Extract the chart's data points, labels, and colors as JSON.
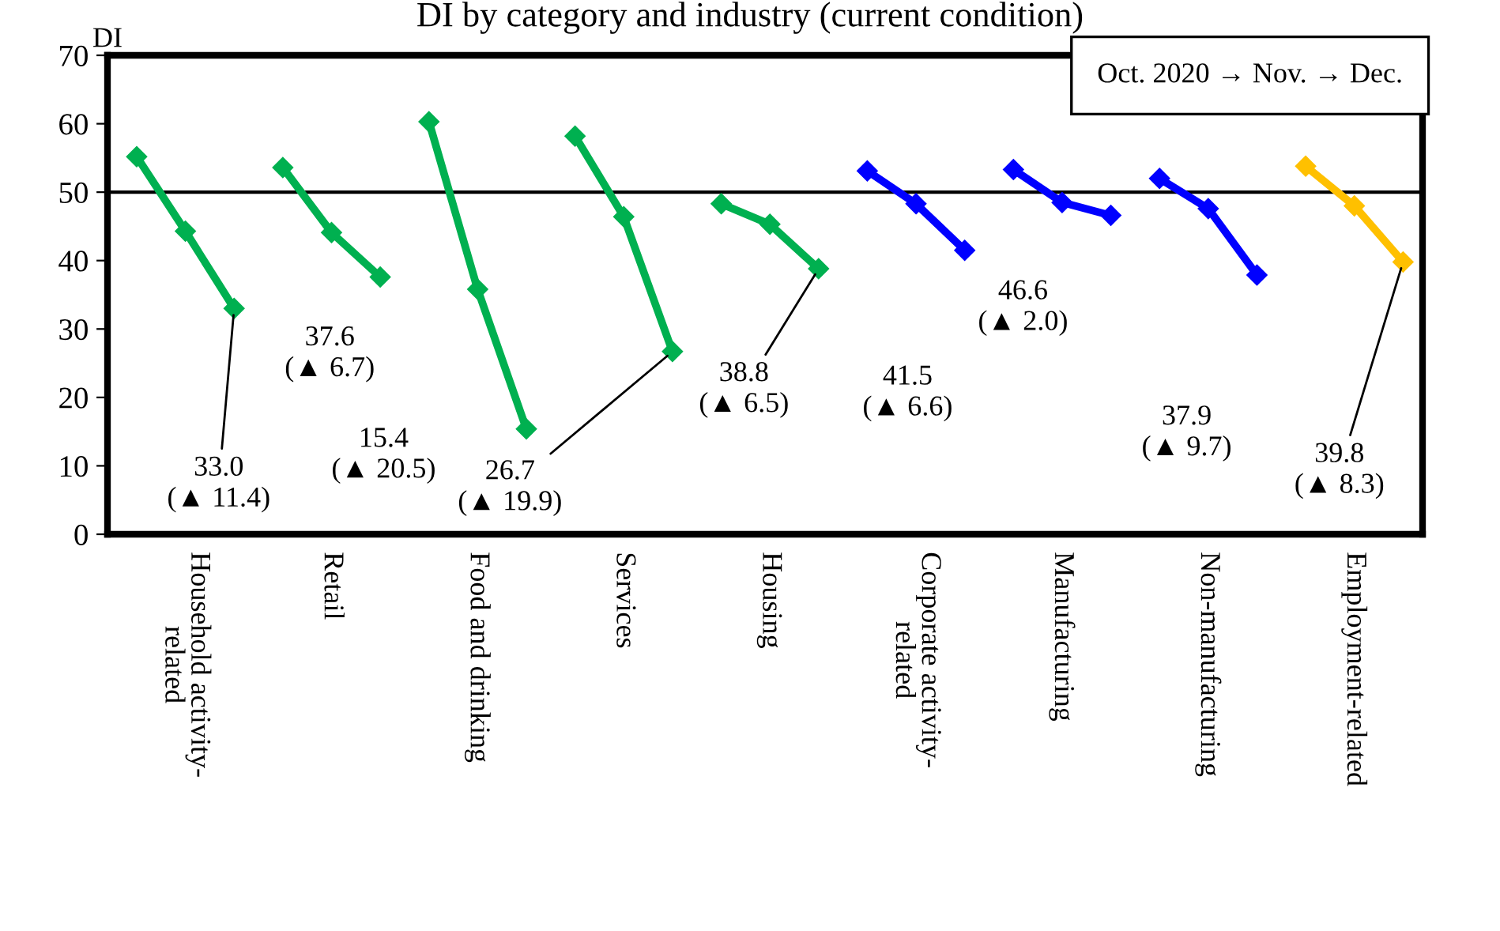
{
  "chart_data": {
    "type": "line",
    "title": "DI by category and industry (current condition)",
    "ylabel": "DI",
    "ylim": [
      0,
      70
    ],
    "yticks": [
      0,
      10,
      20,
      30,
      40,
      50,
      60,
      70
    ],
    "categories": [
      null,
      "Household activity-\nrelated",
      null,
      null,
      "Retail",
      null,
      null,
      "Food and drinking",
      null,
      null,
      "Services",
      null,
      null,
      "Housing",
      null,
      null,
      "Corporate activity-\nrelated",
      null,
      null,
      "Manufacturing",
      null,
      null,
      "Non-manufacturing",
      null,
      null,
      "Employment-related",
      null
    ],
    "marker": "diamond",
    "grid": false,
    "series": [
      {
        "color": "#00b050",
        "values": [
          55.2,
          44.3,
          33.0,
          null,
          null,
          null,
          null,
          null,
          null,
          null,
          null,
          null,
          null,
          null,
          null,
          null,
          null,
          null,
          null,
          null,
          null,
          null,
          null,
          null,
          null,
          null,
          null
        ]
      },
      {
        "color": "#00b050",
        "values": [
          null,
          null,
          null,
          53.6,
          44.1,
          37.6,
          null,
          null,
          null,
          null,
          null,
          null,
          null,
          null,
          null,
          null,
          null,
          null,
          null,
          null,
          null,
          null,
          null,
          null,
          null,
          null,
          null
        ]
      },
      {
        "color": "#00b050",
        "values": [
          null,
          null,
          null,
          null,
          null,
          null,
          60.3,
          35.8,
          15.4,
          null,
          null,
          null,
          null,
          null,
          null,
          null,
          null,
          null,
          null,
          null,
          null,
          null,
          null,
          null,
          null,
          null,
          null
        ]
      },
      {
        "color": "#00b050",
        "values": [
          null,
          null,
          null,
          null,
          null,
          null,
          null,
          null,
          null,
          58.2,
          46.4,
          26.7,
          null,
          null,
          null,
          null,
          null,
          null,
          null,
          null,
          null,
          null,
          null,
          null,
          null,
          null,
          null
        ]
      },
      {
        "color": "#00b050",
        "values": [
          null,
          null,
          null,
          null,
          null,
          null,
          null,
          null,
          null,
          null,
          null,
          null,
          48.3,
          45.3,
          38.8,
          null,
          null,
          null,
          null,
          null,
          null,
          null,
          null,
          null,
          null,
          null,
          null
        ]
      },
      {
        "color": "#0000ff",
        "values": [
          null,
          null,
          null,
          null,
          null,
          null,
          null,
          null,
          null,
          null,
          null,
          null,
          null,
          null,
          null,
          53.1,
          48.3,
          41.5,
          null,
          null,
          null,
          null,
          null,
          null,
          null,
          null,
          null
        ]
      },
      {
        "color": "#0000ff",
        "values": [
          null,
          null,
          null,
          null,
          null,
          null,
          null,
          null,
          null,
          null,
          null,
          null,
          null,
          null,
          null,
          null,
          null,
          null,
          53.3,
          48.5,
          46.6,
          null,
          null,
          null,
          null,
          null,
          null
        ]
      },
      {
        "color": "#0000ff",
        "values": [
          null,
          null,
          null,
          null,
          null,
          null,
          null,
          null,
          null,
          null,
          null,
          null,
          null,
          null,
          null,
          null,
          null,
          null,
          null,
          null,
          null,
          52.0,
          47.6,
          37.9,
          null,
          null,
          null
        ]
      },
      {
        "color": "#ffc000",
        "values": [
          null,
          null,
          null,
          null,
          null,
          null,
          null,
          null,
          null,
          null,
          null,
          null,
          null,
          null,
          null,
          null,
          null,
          null,
          null,
          null,
          null,
          null,
          null,
          null,
          53.8,
          48.0,
          39.8
        ]
      }
    ],
    "ref_lines": [
      {
        "axis": "y",
        "value": 50,
        "color": "#000000"
      }
    ],
    "value_labels": [
      [
        null,
        null,
        "33.0\n(▲ 11.4)",
        null,
        null,
        null,
        null,
        null,
        null,
        null,
        null,
        null,
        null,
        null,
        null,
        null,
        null,
        null,
        null,
        null,
        null,
        null,
        null,
        null,
        null,
        null,
        null
      ],
      [
        null,
        null,
        null,
        null,
        null,
        "37.6\n(▲ 6.7)",
        null,
        null,
        null,
        null,
        null,
        null,
        null,
        null,
        null,
        null,
        null,
        null,
        null,
        null,
        null,
        null,
        null,
        null,
        null,
        null,
        null
      ],
      [
        null,
        null,
        null,
        null,
        null,
        null,
        null,
        null,
        "15.4\n(▲ 20.5)",
        null,
        null,
        null,
        null,
        null,
        null,
        null,
        null,
        null,
        null,
        null,
        null,
        null,
        null,
        null,
        null,
        null,
        null
      ],
      [
        null,
        null,
        null,
        null,
        null,
        null,
        null,
        null,
        null,
        null,
        null,
        "26.7\n(▲ 19.9)",
        null,
        null,
        null,
        null,
        null,
        null,
        null,
        null,
        null,
        null,
        null,
        null,
        null,
        null,
        null
      ],
      [
        null,
        null,
        null,
        null,
        null,
        null,
        null,
        null,
        null,
        null,
        null,
        null,
        null,
        null,
        "38.8\n(▲ 6.5)",
        null,
        null,
        null,
        null,
        null,
        null,
        null,
        null,
        null,
        null,
        null,
        null
      ],
      [
        null,
        null,
        null,
        null,
        null,
        null,
        null,
        null,
        null,
        null,
        null,
        null,
        null,
        null,
        null,
        null,
        null,
        "41.5\n(▲ 6.6)",
        null,
        null,
        null,
        null,
        null,
        null,
        null,
        null,
        null
      ],
      [
        null,
        null,
        null,
        null,
        null,
        null,
        null,
        null,
        null,
        null,
        null,
        null,
        null,
        null,
        null,
        null,
        null,
        null,
        null,
        null,
        "46.6\n(▲ 2.0)",
        null,
        null,
        null,
        null,
        null,
        null
      ],
      [
        null,
        null,
        null,
        null,
        null,
        null,
        null,
        null,
        null,
        null,
        null,
        null,
        null,
        null,
        null,
        null,
        null,
        null,
        null,
        null,
        null,
        null,
        null,
        "37.9\n(▲ 9.7)",
        null,
        null,
        null
      ],
      [
        null,
        null,
        null,
        null,
        null,
        null,
        null,
        null,
        null,
        null,
        null,
        null,
        null,
        null,
        null,
        null,
        null,
        null,
        null,
        null,
        null,
        null,
        null,
        null,
        null,
        null,
        "39.8\n(▲ 8.3)"
      ]
    ],
    "annotations": [
      "Oct. 2020 → Nov. → Dec."
    ]
  }
}
